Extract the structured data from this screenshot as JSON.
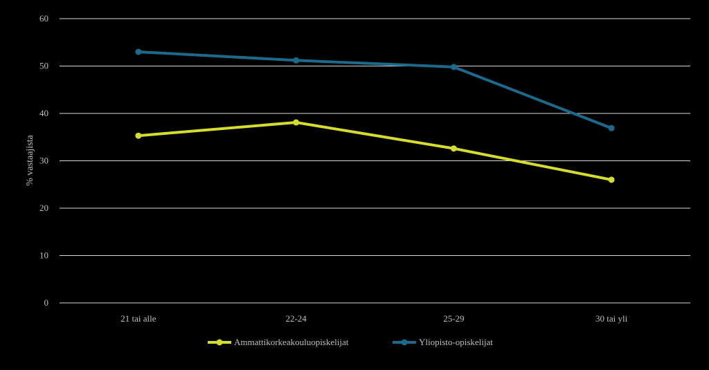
{
  "chart_data": {
    "type": "line",
    "title": "",
    "xlabel": "",
    "ylabel": "% vastaajista",
    "ylim": [
      0,
      60
    ],
    "yticks": [
      0,
      10,
      20,
      30,
      40,
      50,
      60
    ],
    "grid": true,
    "legend_position": "bottom",
    "categories": [
      "21 tai alle",
      "22-24",
      "25-29",
      "30 tai yli"
    ],
    "series": [
      {
        "name": "Ammattikorkeakouluopiskelijat",
        "color": "#d4dc2c",
        "values": [
          35.3,
          38.1,
          32.6,
          26.0
        ]
      },
      {
        "name": "Yliopisto-opiskelijat",
        "color": "#1b6a8c",
        "values": [
          53.0,
          51.2,
          49.8,
          36.9
        ]
      }
    ]
  }
}
